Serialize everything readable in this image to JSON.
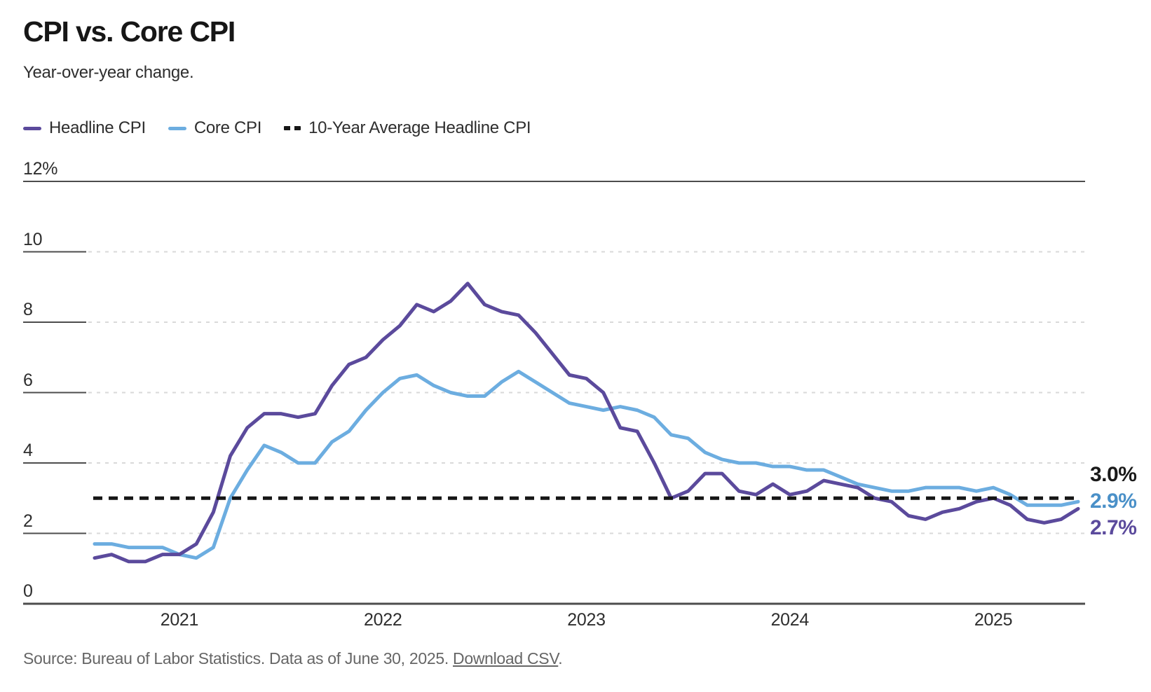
{
  "header": {
    "title": "CPI vs. Core CPI",
    "subtitle": "Year-over-year change."
  },
  "legend": {
    "items": [
      {
        "label": "Headline CPI",
        "color": "#5b4a9c",
        "style": "solid"
      },
      {
        "label": "Core CPI",
        "color": "#6cade0",
        "style": "solid"
      },
      {
        "label": "10-Year Average Headline CPI",
        "color": "#161616",
        "style": "dashed"
      }
    ]
  },
  "chart_data": {
    "type": "line",
    "title": "CPI vs. Core CPI",
    "subtitle": "Year-over-year change.",
    "unit": "percent, year-over-year",
    "ylim": [
      0,
      12
    ],
    "y_tick_values": [
      12,
      10,
      8,
      6,
      4,
      2,
      0
    ],
    "y_tick_labels": [
      "12%",
      "10",
      "8",
      "6",
      "4",
      "2",
      "0"
    ],
    "x_tick_labels": [
      "2021",
      "2022",
      "2023",
      "2024",
      "2025"
    ],
    "grid": "horizontal dashed gridlines, solid top and bottom border",
    "legend_position": "top-left",
    "x_months": [
      "Aug 2020",
      "Sep 2020",
      "Oct 2020",
      "Nov 2020",
      "Dec 2020",
      "Jan 2021",
      "Feb 2021",
      "Mar 2021",
      "Apr 2021",
      "May 2021",
      "Jun 2021",
      "Jul 2021",
      "Aug 2021",
      "Sep 2021",
      "Oct 2021",
      "Nov 2021",
      "Dec 2021",
      "Jan 2022",
      "Feb 2022",
      "Mar 2022",
      "Apr 2022",
      "May 2022",
      "Jun 2022",
      "Jul 2022",
      "Aug 2022",
      "Sep 2022",
      "Oct 2022",
      "Nov 2022",
      "Dec 2022",
      "Jan 2023",
      "Feb 2023",
      "Mar 2023",
      "Apr 2023",
      "May 2023",
      "Jun 2023",
      "Jul 2023",
      "Aug 2023",
      "Sep 2023",
      "Oct 2023",
      "Nov 2023",
      "Dec 2023",
      "Jan 2024",
      "Feb 2024",
      "Mar 2024",
      "Apr 2024",
      "May 2024",
      "Jun 2024",
      "Jul 2024",
      "Aug 2024",
      "Sep 2024",
      "Oct 2024",
      "Nov 2024",
      "Dec 2024",
      "Jan 2025",
      "Feb 2025",
      "Mar 2025",
      "Apr 2025",
      "May 2025",
      "Jun 2025"
    ],
    "series": [
      {
        "name": "Headline CPI",
        "color": "#5b4a9c",
        "values": [
          1.3,
          1.4,
          1.2,
          1.2,
          1.4,
          1.4,
          1.7,
          2.6,
          4.2,
          5.0,
          5.4,
          5.4,
          5.3,
          5.4,
          6.2,
          6.8,
          7.0,
          7.5,
          7.9,
          8.5,
          8.3,
          8.6,
          9.1,
          8.5,
          8.3,
          8.2,
          7.7,
          7.1,
          6.5,
          6.4,
          6.0,
          5.0,
          4.9,
          4.0,
          3.0,
          3.2,
          3.7,
          3.7,
          3.2,
          3.1,
          3.4,
          3.1,
          3.2,
          3.5,
          3.4,
          3.3,
          3.0,
          2.9,
          2.5,
          2.4,
          2.6,
          2.7,
          2.9,
          3.0,
          2.8,
          2.4,
          2.3,
          2.4,
          2.7
        ]
      },
      {
        "name": "Core CPI",
        "color": "#6cade0",
        "values": [
          1.7,
          1.7,
          1.6,
          1.6,
          1.6,
          1.4,
          1.3,
          1.6,
          3.0,
          3.8,
          4.5,
          4.3,
          4.0,
          4.0,
          4.6,
          4.9,
          5.5,
          6.0,
          6.4,
          6.5,
          6.2,
          6.0,
          5.9,
          5.9,
          6.3,
          6.6,
          6.3,
          6.0,
          5.7,
          5.6,
          5.5,
          5.6,
          5.5,
          5.3,
          4.8,
          4.7,
          4.3,
          4.1,
          4.0,
          4.0,
          3.9,
          3.9,
          3.8,
          3.8,
          3.6,
          3.4,
          3.3,
          3.2,
          3.2,
          3.3,
          3.3,
          3.3,
          3.2,
          3.3,
          3.1,
          2.8,
          2.8,
          2.8,
          2.9
        ]
      }
    ],
    "reference_line": {
      "name": "10-Year Average Headline CPI",
      "value": 3.0,
      "color": "#161616",
      "style": "dashed"
    },
    "end_labels": [
      {
        "text": "3.0%",
        "color": "#1a1a1a",
        "refers_to": "10-Year Average Headline CPI"
      },
      {
        "text": "2.9%",
        "color": "#4a90c8",
        "refers_to": "Core CPI"
      },
      {
        "text": "2.7%",
        "color": "#5b4a9c",
        "refers_to": "Headline CPI"
      }
    ]
  },
  "footer": {
    "text": "Source: Bureau of Labor Statistics. Data as of June 30, 2025.",
    "link_label": "Download CSV",
    "suffix": "."
  }
}
